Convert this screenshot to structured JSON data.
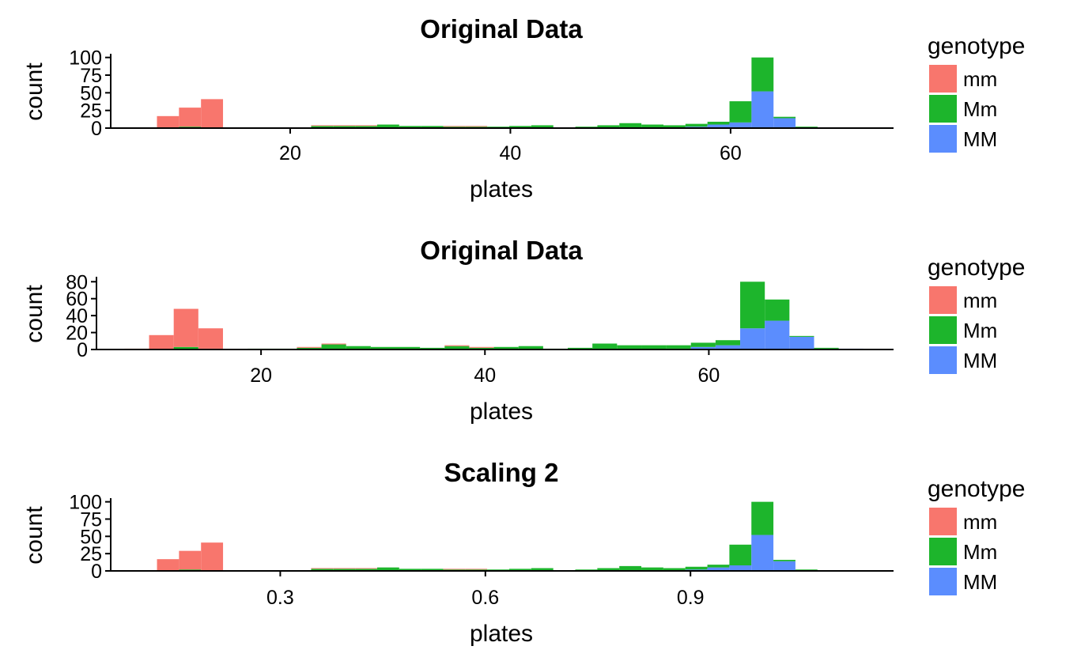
{
  "genotype_colors": {
    "mm": "#F8766D",
    "Mm": "#1DB52C",
    "MM": "#5B8DFE"
  },
  "chart_data": [
    {
      "type": "bar",
      "stacked": true,
      "title": "Original Data",
      "xlabel": "plates",
      "ylabel": "count",
      "xlim": [
        3.7,
        74.8
      ],
      "ylim": [
        0,
        103
      ],
      "xticks": [
        20,
        40,
        60
      ],
      "xtick_labels": [
        "20",
        "40",
        "60"
      ],
      "yticks": [
        0,
        25,
        50,
        75,
        100
      ],
      "ytick_labels": [
        "0",
        "25",
        "50",
        "75",
        "100"
      ],
      "bin_start": 5.9,
      "bin_width": 2.0,
      "legend": {
        "title": "genotype",
        "entries": [
          "mm",
          "Mm",
          "MM"
        ],
        "position": "right"
      },
      "series": [
        {
          "name": "mm",
          "values": [
            1,
            17,
            27,
            40,
            0,
            0,
            0,
            0,
            1,
            1,
            1,
            0,
            0,
            0,
            1,
            1,
            0,
            0,
            0,
            0,
            0,
            0,
            0,
            0,
            0,
            0,
            0,
            0,
            0,
            0,
            0,
            0,
            0
          ]
        },
        {
          "name": "Mm",
          "values": [
            0,
            0,
            2,
            1,
            0,
            1,
            1,
            0,
            3,
            3,
            3,
            5,
            3,
            3,
            2,
            2,
            2,
            3,
            4,
            1,
            2,
            4,
            7,
            5,
            3,
            4,
            4,
            30,
            48,
            2,
            1,
            0,
            0
          ]
        },
        {
          "name": "MM",
          "values": [
            0,
            0,
            0,
            0,
            0,
            0,
            0,
            0,
            0,
            0,
            0,
            0,
            0,
            0,
            0,
            0,
            0,
            0,
            0,
            0,
            0,
            0,
            0,
            0,
            1,
            2,
            5,
            8,
            52,
            14,
            1,
            1,
            0
          ]
        }
      ]
    },
    {
      "type": "bar",
      "stacked": true,
      "title": "Original Data",
      "xlabel": "plates",
      "ylabel": "count",
      "xlim": [
        5.3,
        76.5
      ],
      "ylim": [
        0,
        84
      ],
      "xticks": [
        20,
        40,
        60
      ],
      "xtick_labels": [
        "20",
        "40",
        "60"
      ],
      "yticks": [
        0,
        20,
        40,
        60,
        80
      ],
      "ytick_labels": [
        "0",
        "20",
        "40",
        "60",
        "80"
      ],
      "bin_start": 7.8,
      "bin_width": 2.2,
      "legend": {
        "title": "genotype",
        "entries": [
          "mm",
          "Mm",
          "MM"
        ],
        "position": "right"
      },
      "series": [
        {
          "name": "mm",
          "values": [
            1,
            17,
            45,
            24,
            0,
            0,
            0,
            1,
            1,
            0,
            0,
            0,
            0,
            1,
            1,
            0,
            0,
            0,
            0,
            0,
            0,
            0,
            0,
            0,
            0,
            0,
            0,
            0,
            0,
            0,
            0
          ]
        },
        {
          "name": "Mm",
          "values": [
            0,
            0,
            3,
            1,
            0,
            1,
            1,
            2,
            6,
            4,
            3,
            3,
            2,
            4,
            2,
            3,
            4,
            1,
            2,
            7,
            5,
            5,
            4,
            5,
            6,
            55,
            25,
            1,
            1,
            0,
            0
          ]
        },
        {
          "name": "MM",
          "values": [
            0,
            0,
            0,
            0,
            0,
            0,
            0,
            0,
            0,
            0,
            0,
            0,
            0,
            0,
            0,
            0,
            0,
            0,
            0,
            0,
            0,
            0,
            1,
            3,
            5,
            25,
            34,
            15,
            1,
            1,
            0
          ]
        }
      ]
    },
    {
      "type": "bar",
      "stacked": true,
      "title": "Scaling 2",
      "xlabel": "plates",
      "ylabel": "count",
      "xlim": [
        0.052,
        1.197
      ],
      "ylim": [
        0,
        103
      ],
      "xticks": [
        0.3,
        0.6,
        0.9
      ],
      "xtick_labels": [
        "0.3",
        "0.6",
        "0.9"
      ],
      "yticks": [
        0,
        25,
        50,
        75,
        100
      ],
      "ytick_labels": [
        "0",
        "25",
        "50",
        "75",
        "100"
      ],
      "bin_start": 0.0875,
      "bin_width": 0.0322,
      "legend": {
        "title": "genotype",
        "entries": [
          "mm",
          "Mm",
          "MM"
        ],
        "position": "right"
      },
      "series": [
        {
          "name": "mm",
          "values": [
            1,
            17,
            27,
            40,
            0,
            0,
            0,
            0,
            1,
            1,
            1,
            0,
            0,
            0,
            1,
            1,
            0,
            0,
            0,
            0,
            0,
            0,
            0,
            0,
            0,
            0,
            0,
            0,
            0,
            0,
            0,
            0,
            0
          ]
        },
        {
          "name": "Mm",
          "values": [
            0,
            0,
            2,
            1,
            0,
            1,
            1,
            0,
            3,
            3,
            3,
            5,
            3,
            3,
            2,
            2,
            2,
            3,
            4,
            1,
            2,
            4,
            7,
            5,
            3,
            4,
            4,
            30,
            48,
            2,
            1,
            0,
            0
          ]
        },
        {
          "name": "MM",
          "values": [
            0,
            0,
            0,
            0,
            0,
            0,
            0,
            0,
            0,
            0,
            0,
            0,
            0,
            0,
            0,
            0,
            0,
            0,
            0,
            0,
            0,
            0,
            0,
            0,
            1,
            2,
            5,
            8,
            52,
            14,
            1,
            1,
            0
          ]
        }
      ]
    }
  ]
}
